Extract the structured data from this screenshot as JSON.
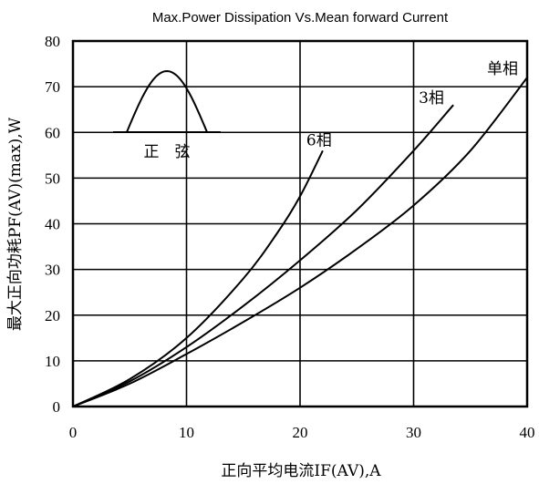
{
  "chart_data": {
    "type": "line",
    "title": "Max.Power Dissipation Vs.Mean forward Current",
    "xlabel": "正向平均电流IF(AV),A",
    "ylabel": "最大正向功耗PF(AV)(max),W",
    "xlim": [
      0,
      40
    ],
    "ylim": [
      0,
      80
    ],
    "x_ticks": [
      "0",
      "10",
      "20",
      "30",
      "40"
    ],
    "y_ticks": [
      "0",
      "10",
      "20",
      "30",
      "40",
      "50",
      "60",
      "70",
      "80"
    ],
    "grid": true,
    "inset_label": "正　弦",
    "series": [
      {
        "name": "6相",
        "x": [
          0,
          5,
          10,
          15,
          18,
          20,
          22
        ],
        "y": [
          0,
          6,
          15,
          28,
          38,
          46,
          56
        ]
      },
      {
        "name": "3相",
        "x": [
          0,
          5,
          10,
          15,
          20,
          25,
          30,
          33.5
        ],
        "y": [
          0,
          5.5,
          13,
          22,
          32,
          43,
          56,
          66
        ]
      },
      {
        "name": "单相",
        "x": [
          0,
          5,
          10,
          15,
          20,
          25,
          30,
          35,
          40
        ],
        "y": [
          0,
          5,
          11.5,
          18.5,
          26,
          34.5,
          44,
          56,
          72
        ]
      }
    ]
  }
}
